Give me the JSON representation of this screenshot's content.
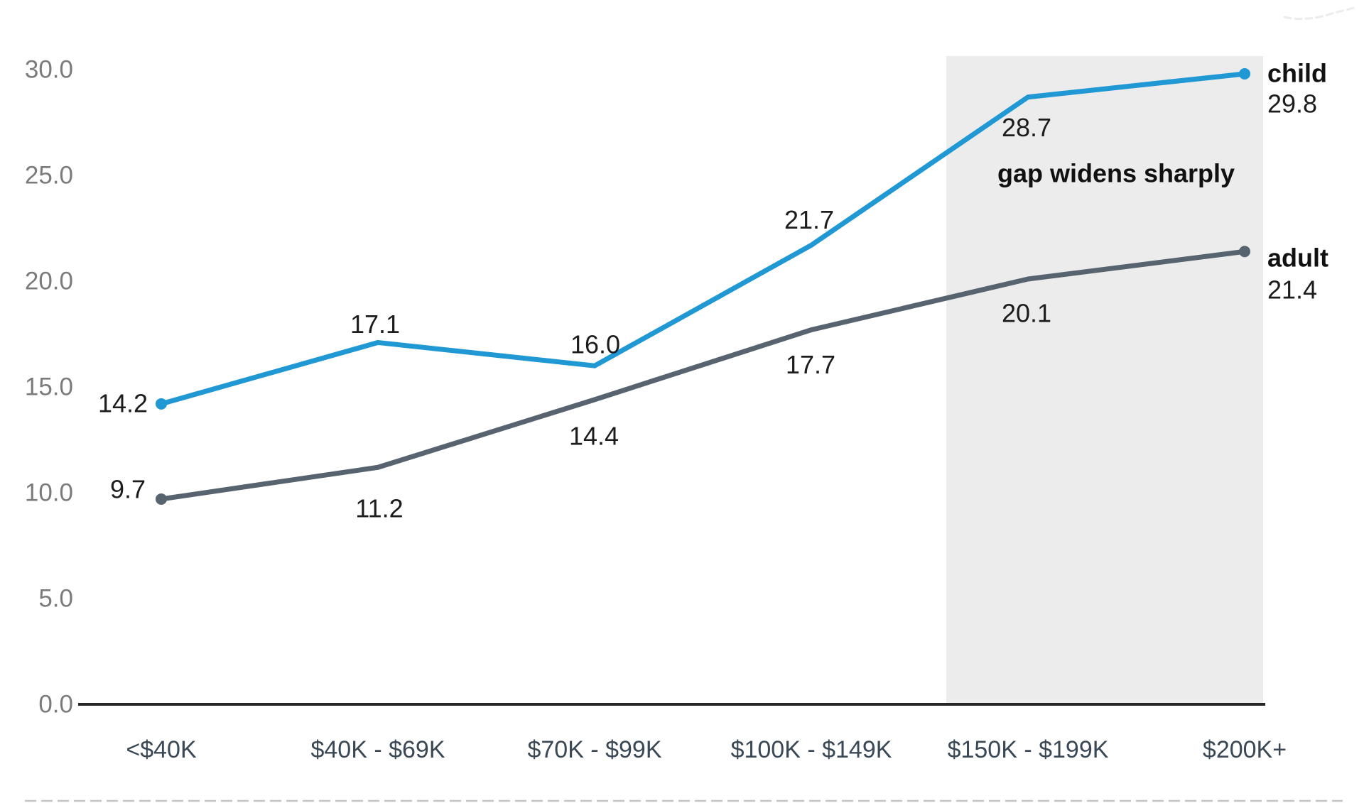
{
  "chart_data": {
    "type": "line",
    "title": "",
    "categories": [
      "<$40K",
      "$40K - $69K",
      "$70K - $99K",
      "$100K - $149K",
      "$150K - $199K",
      "$200K+"
    ],
    "series": [
      {
        "name": "child",
        "values": [
          14.2,
          17.1,
          16.0,
          21.7,
          28.7,
          29.8
        ],
        "color": "#2098d4",
        "end_label": "child",
        "end_value": "29.8"
      },
      {
        "name": "adult",
        "values": [
          9.7,
          11.2,
          14.4,
          17.7,
          20.1,
          21.4
        ],
        "color": "#57636f",
        "end_label": "adult",
        "end_value": "21.4"
      }
    ],
    "value_format_decimals": 1,
    "y_ticks": [
      30,
      25,
      20,
      15,
      10,
      5,
      0
    ],
    "ylim": [
      0,
      30
    ],
    "xlabel": "",
    "ylabel": "",
    "grid": "off",
    "legend_position": "line-end-labels",
    "annotation": "gap widens sharply",
    "highlight_band": {
      "covers_categories": [
        "$150K - $199K",
        "$200K+"
      ],
      "color": "#ececec"
    },
    "colors": {
      "child_line": "#2098d4",
      "adult_line": "#57636f",
      "axis_line": "#262626",
      "y_tick_label": "#7b7b7b",
      "x_tick_label": "#3a4754",
      "data_label": "#1c1c1c",
      "annotation_text": "#111111",
      "highlight_band": "#ececec",
      "background": "#ffffff"
    }
  }
}
